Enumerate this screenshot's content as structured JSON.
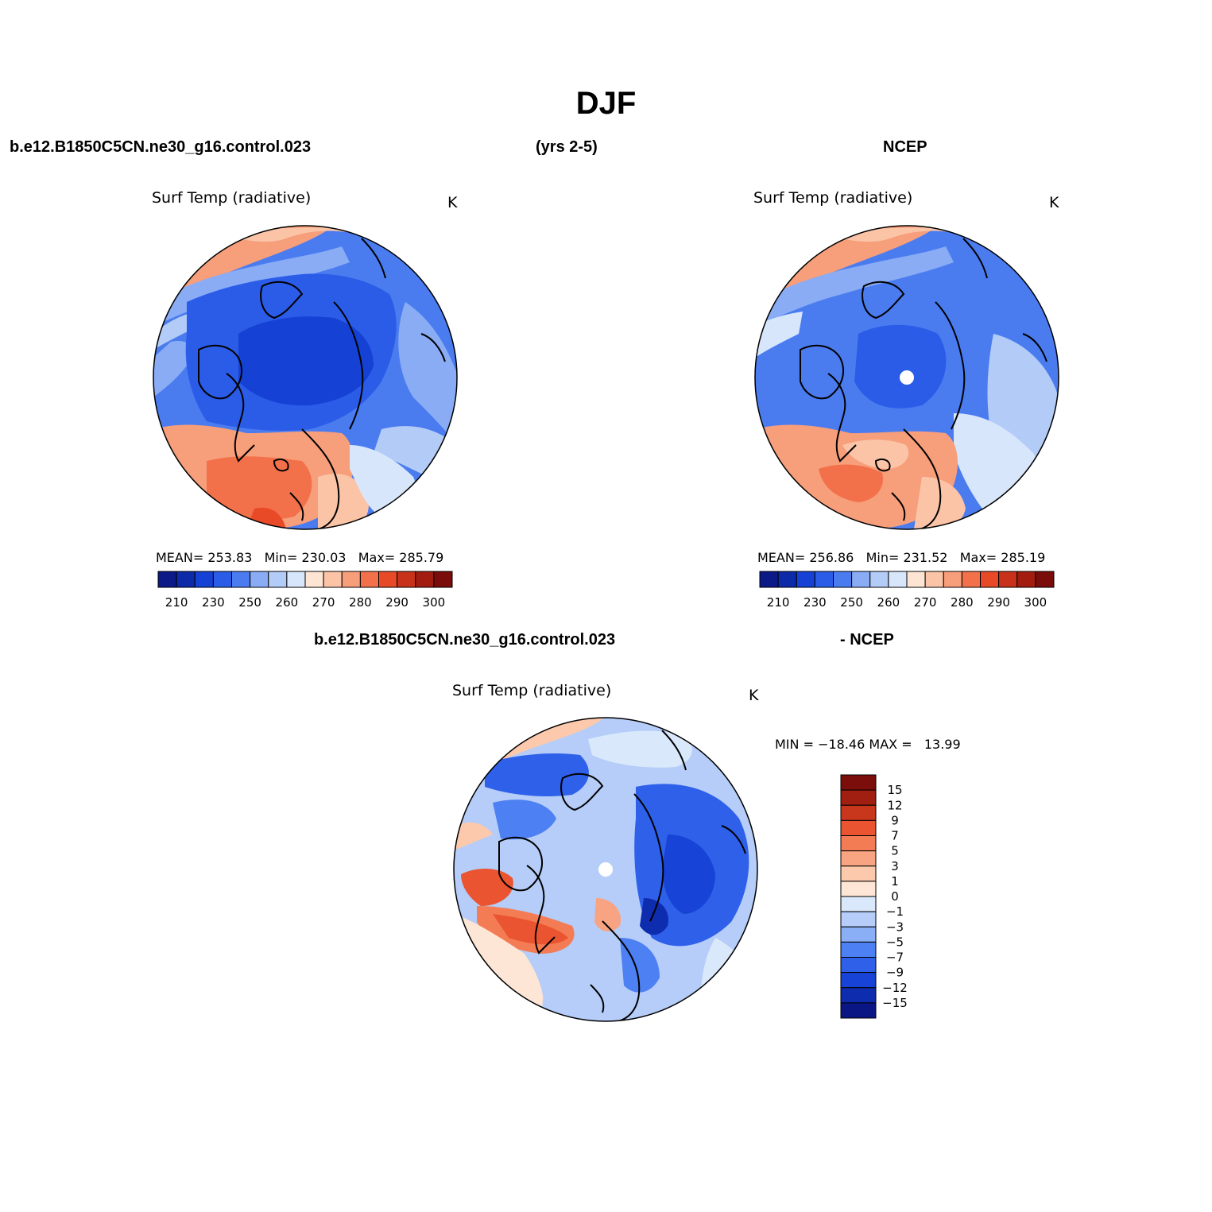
{
  "figure": {
    "title": "DJF",
    "case_name": "b.e12.B1850C5CN.ne30_g16.control.023",
    "years": "(yrs 2-5)",
    "reference": "NCEP",
    "diff_case": "b.e12.B1850C5CN.ne30_g16.control.023",
    "diff_ref": "- NCEP"
  },
  "chart_data": [
    {
      "type": "heatmap",
      "projection": "north polar stereographic",
      "title": "Surf Temp (radiative)",
      "units": "K",
      "stats": {
        "mean_label": "MEAN=",
        "mean": "253.83",
        "min_label": "Min=",
        "min": "230.03",
        "max_label": "Max=",
        "max": "285.79"
      },
      "colorbar": {
        "levels": [
          210,
          220,
          230,
          240,
          250,
          255,
          260,
          265,
          270,
          275,
          280,
          285,
          290,
          295,
          300
        ],
        "tick_labels": [
          "210",
          "230",
          "250",
          "260",
          "270",
          "280",
          "290",
          "300"
        ],
        "colors": [
          "#0b1a86",
          "#0d2aa8",
          "#1542d4",
          "#2b5ce8",
          "#4a7cf0",
          "#89acf5",
          "#b3cbf7",
          "#d7e6fb",
          "#fde4d3",
          "#fcc4a7",
          "#f79e7b",
          "#f2714a",
          "#e84a28",
          "#c8321a",
          "#a31c10",
          "#7a0c0a"
        ]
      }
    },
    {
      "type": "heatmap",
      "projection": "north polar stereographic",
      "title": "Surf Temp (radiative)",
      "units": "K",
      "stats": {
        "mean_label": "MEAN=",
        "mean": "256.86",
        "min_label": "Min=",
        "min": "231.52",
        "max_label": "Max=",
        "max": "285.19"
      },
      "colorbar": {
        "levels": [
          210,
          220,
          230,
          240,
          250,
          255,
          260,
          265,
          270,
          275,
          280,
          285,
          290,
          295,
          300
        ],
        "tick_labels": [
          "210",
          "230",
          "250",
          "260",
          "270",
          "280",
          "290",
          "300"
        ],
        "colors": [
          "#0b1a86",
          "#0d2aa8",
          "#1542d4",
          "#2b5ce8",
          "#4a7cf0",
          "#89acf5",
          "#b3cbf7",
          "#d7e6fb",
          "#fde4d3",
          "#fcc4a7",
          "#f79e7b",
          "#f2714a",
          "#e84a28",
          "#c8321a",
          "#a31c10",
          "#7a0c0a"
        ]
      }
    },
    {
      "type": "heatmap",
      "projection": "north polar stereographic",
      "title": "Surf Temp (radiative)",
      "units": "K",
      "stats": {
        "min_label": "MIN =",
        "min": "−18.46",
        "max_label": "MAX =",
        "max": "13.99"
      },
      "colorbar": {
        "orientation": "vertical",
        "levels": [
          -15,
          -12,
          -9,
          -7,
          -5,
          -3,
          -1,
          0,
          1,
          3,
          5,
          7,
          9,
          12,
          15
        ],
        "tick_labels": [
          "15",
          "12",
          "9",
          "7",
          "5",
          "3",
          "1",
          "0",
          "−1",
          "−3",
          "−5",
          "−7",
          "−9",
          "−12",
          "−15"
        ],
        "colors": [
          "#0a1684",
          "#0e2cae",
          "#1744d6",
          "#2e60ea",
          "#4d80f2",
          "#8aaff6",
          "#b5cdf8",
          "#d9e8fb",
          "#fde6d6",
          "#fcc9ad",
          "#f8a482",
          "#f37c55",
          "#ea5430",
          "#c8361c",
          "#a11f11",
          "#7b0d0b"
        ]
      }
    }
  ]
}
